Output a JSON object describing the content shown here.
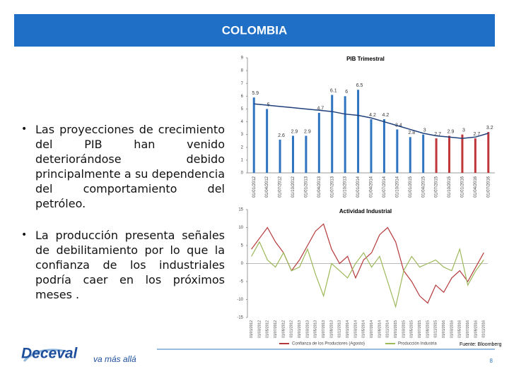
{
  "header": {
    "title": "COLOMBIA"
  },
  "bullets": [
    "Las proyecciones de crecimiento del PIB han venido deteriorándose debido principalmente a su dependencia del comportamiento del petróleo.",
    "La producción presenta señales de debilitamiento por lo que la confianza de los industriales podría caer en los próximos meses ."
  ],
  "chart_data": [
    {
      "type": "bar",
      "title": "PIB Trimestral",
      "categories": [
        "01/01/2012",
        "01/04/2012",
        "01/07/2012",
        "01/10/2012",
        "01/01/2013",
        "01/04/2013",
        "01/07/2013",
        "01/10/2013",
        "01/01/2014",
        "01/04/2014",
        "01/07/2014",
        "01/10/2014",
        "01/01/2015",
        "01/04/2015",
        "01/07/2015",
        "01/10/2015",
        "01/01/2016",
        "01/04/2016",
        "01/07/2016"
      ],
      "values": [
        5.9,
        5,
        2.6,
        2.9,
        2.9,
        4.7,
        6.1,
        6,
        6.5,
        4.2,
        4.2,
        3.4,
        2.8,
        3,
        2.7,
        2.9,
        3,
        2.7,
        3.2
      ],
      "colors": [
        "#2e74c0",
        "#2e74c0",
        "#2e74c0",
        "#2e74c0",
        "#2e74c0",
        "#2e74c0",
        "#2e74c0",
        "#2e74c0",
        "#2e74c0",
        "#2e74c0",
        "#2e74c0",
        "#2e74c0",
        "#2e74c0",
        "#2e74c0",
        "#c0373a",
        "#c0373a",
        "#c0373a",
        "#c0373a",
        "#c0373a"
      ],
      "line_values": [
        5.4,
        5.3,
        5.2,
        5.1,
        5,
        4.9,
        4.8,
        4.6,
        4.5,
        4.3,
        4,
        3.7,
        3.4,
        3.1,
        2.9,
        2.8,
        2.7,
        2.8,
        3.1
      ],
      "line_color": "#1f3f7a",
      "ylim": [
        0,
        9
      ],
      "yticks": [
        0,
        1,
        2,
        3,
        4,
        5,
        6,
        7,
        8,
        9
      ]
    },
    {
      "type": "line",
      "title": "Actividad Industrial",
      "categories": [
        "01/01/2012",
        "01/03/2012",
        "01/05/2012",
        "01/07/2012",
        "01/09/2012",
        "01/11/2012",
        "01/01/2013",
        "01/03/2013",
        "01/05/2013",
        "01/07/2013",
        "01/09/2013",
        "01/11/2013",
        "01/01/2014",
        "01/03/2014",
        "01/05/2014",
        "01/07/2014",
        "01/09/2014",
        "01/11/2014",
        "01/01/2015",
        "01/03/2015",
        "01/05/2015",
        "01/07/2015",
        "01/09/2015",
        "01/11/2015",
        "01/01/2016",
        "01/03/2016",
        "01/05/2016",
        "01/07/2016",
        "01/09/2016",
        "01/11/2016"
      ],
      "series": [
        {
          "name": "Confianza de los Productores (Agosto)",
          "color": "#b5393b",
          "values": [
            4,
            7,
            10,
            6,
            3,
            -2,
            1,
            5,
            9,
            11,
            4,
            0,
            2,
            -4,
            1,
            3,
            8,
            10,
            6,
            -2,
            -5,
            -9,
            -11,
            -6,
            -8,
            -4,
            -2,
            -5,
            -1,
            3
          ]
        },
        {
          "name": "Producción Industria",
          "color": "#9cb85a",
          "values": [
            2,
            6,
            1,
            -1,
            3,
            -2,
            -1,
            4,
            -3,
            -9,
            0,
            -2,
            -4,
            0,
            3,
            -1,
            2,
            -5,
            -12,
            -2,
            2,
            -1,
            0,
            1,
            -1,
            -2,
            4,
            -6,
            -2,
            1
          ]
        }
      ],
      "ylim": [
        -15,
        15
      ],
      "yticks": [
        -15,
        -10,
        -5,
        0,
        5,
        10,
        15
      ]
    }
  ],
  "footer": {
    "source": "Fuente: Bloomberg",
    "page": "8",
    "logo": "Deceval",
    "slogan": "va más allá"
  }
}
